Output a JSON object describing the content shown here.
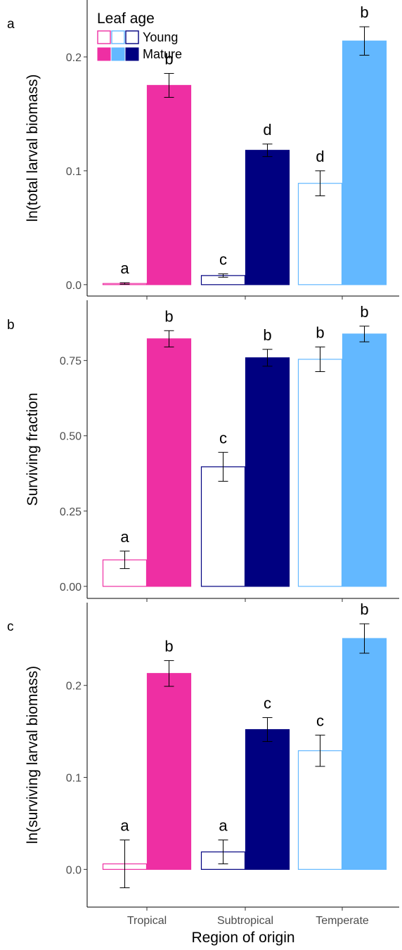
{
  "legend": {
    "title": "Leaf age",
    "items": [
      "Young",
      "Mature"
    ]
  },
  "colors": {
    "Tropical": "#ee2fa3",
    "Subtropical": "#000080",
    "Temperate": "#63b8ff",
    "axis": "#000000",
    "tick_text": "#4d4d4d"
  },
  "x_axis_label": "Region of origin",
  "chart_data": [
    {
      "panel": "a",
      "type": "bar",
      "ylabel": "ln(total larval biomass)",
      "categories": [
        "Tropical",
        "Subtropical",
        "Temperate"
      ],
      "ylim": [
        -0.01,
        0.25
      ],
      "yticks": [
        0.0,
        0.1,
        0.2
      ],
      "ytick_labels": [
        "0.0",
        "0.1",
        "0.2"
      ],
      "series": [
        {
          "name": "Young",
          "values": [
            0.001,
            0.008,
            0.089
          ],
          "errors": [
            0.0007,
            0.0015,
            0.011
          ],
          "letters": [
            "a",
            "c",
            "d"
          ]
        },
        {
          "name": "Mature",
          "values": [
            0.175,
            0.118,
            0.214
          ],
          "errors": [
            0.0105,
            0.0055,
            0.0125
          ],
          "letters": [
            "b",
            "d",
            "b"
          ]
        }
      ]
    },
    {
      "panel": "b",
      "type": "bar",
      "ylabel": "Surviving fraction",
      "categories": [
        "Tropical",
        "Subtropical",
        "Temperate"
      ],
      "ylim": [
        -0.04,
        0.95
      ],
      "yticks": [
        0.0,
        0.25,
        0.5,
        0.75
      ],
      "ytick_labels": [
        "0.00",
        "0.25",
        "0.50",
        "0.75"
      ],
      "series": [
        {
          "name": "Young",
          "values": [
            0.088,
            0.397,
            0.754
          ],
          "errors": [
            0.029,
            0.048,
            0.041
          ],
          "letters": [
            "a",
            "c",
            "b"
          ]
        },
        {
          "name": "Mature",
          "values": [
            0.822,
            0.759,
            0.838
          ],
          "errors": [
            0.027,
            0.028,
            0.026
          ],
          "letters": [
            "b",
            "b",
            "b"
          ]
        }
      ]
    },
    {
      "panel": "c",
      "type": "bar",
      "ylabel": "ln(surviving larval biomass)",
      "categories": [
        "Tropical",
        "Subtropical",
        "Temperate"
      ],
      "ylim": [
        -0.041,
        0.29
      ],
      "yticks": [
        0.0,
        0.1,
        0.2
      ],
      "ytick_labels": [
        "0.0",
        "0.1",
        "0.2"
      ],
      "series": [
        {
          "name": "Young",
          "values": [
            0.006,
            0.019,
            0.129
          ],
          "errors": [
            0.026,
            0.013,
            0.017
          ],
          "letters": [
            "a",
            "a",
            "c"
          ]
        },
        {
          "name": "Mature",
          "values": [
            0.213,
            0.152,
            0.251
          ],
          "errors": [
            0.014,
            0.013,
            0.016
          ],
          "letters": [
            "b",
            "c",
            "b"
          ]
        }
      ]
    }
  ]
}
